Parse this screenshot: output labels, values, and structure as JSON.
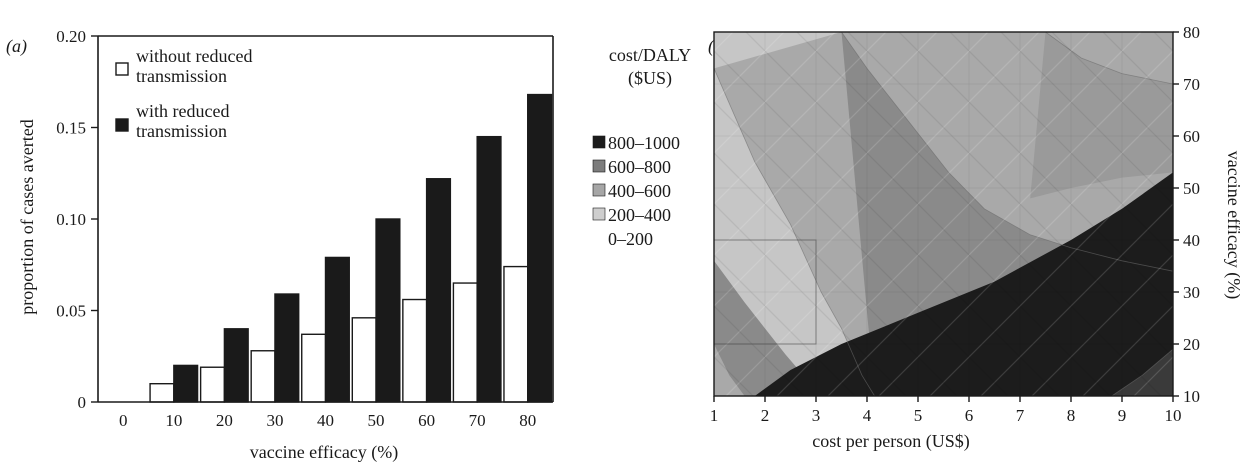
{
  "chart_data": [
    {
      "type": "bar",
      "panel_label": "(a)",
      "categories": [
        "0",
        "10",
        "20",
        "30",
        "40",
        "50",
        "60",
        "70",
        "80"
      ],
      "series": [
        {
          "name": "without reduced transmission",
          "values": [
            0,
            0.01,
            0.019,
            0.028,
            0.037,
            0.046,
            0.056,
            0.065,
            0.074
          ],
          "color": "#ffffff"
        },
        {
          "name": "with reduced transmission",
          "values": [
            0,
            0.02,
            0.04,
            0.059,
            0.079,
            0.1,
            0.122,
            0.145,
            0.168
          ],
          "color": "#1a1a1a"
        }
      ],
      "xlabel": "vaccine efficacy (%)",
      "ylabel": "proportion of cases averted",
      "ylim": [
        0,
        0.2
      ],
      "yticks": [
        "0",
        "0.05",
        "0.10",
        "0.15",
        "0.20"
      ],
      "legend": [
        "without reduced transmission",
        "with reduced transmission"
      ],
      "legend_position": "top-left",
      "grid": false
    },
    {
      "type": "heatmap",
      "panel_label": "(b)",
      "xlabel": "cost per person (US$)",
      "ylabel": "vaccine efficacy (%)",
      "xlim": [
        1,
        10
      ],
      "ylim": [
        10,
        80
      ],
      "xticks": [
        "1",
        "2",
        "3",
        "4",
        "5",
        "6",
        "7",
        "8",
        "9",
        "10"
      ],
      "yticks": [
        "10",
        "20",
        "30",
        "40",
        "50",
        "60",
        "70",
        "80"
      ],
      "legend_title": [
        "cost/DALY",
        "($US)"
      ],
      "legend_position": "left",
      "levels": [
        {
          "label": "800–1000",
          "color": "#1c1c1c"
        },
        {
          "label": "600–800",
          "color": "#7c7c7c"
        },
        {
          "label": "400–600",
          "color": "#a6a6a6"
        },
        {
          "label": "200–400",
          "color": "#cecece"
        },
        {
          "label": "0–200",
          "color": "#ffffff"
        }
      ],
      "region_colors": {
        "top_left": "#c6c6c6",
        "upper_band": "#a9a9a9",
        "middle_band": "#8a8a8a",
        "bottom_right": "#1c1c1c",
        "corner": "#3a3a3a"
      },
      "boundaries": {
        "b1": [
          [
            1.0,
            73
          ],
          [
            1.8,
            55
          ],
          [
            2.5,
            43
          ],
          [
            3.1,
            30
          ],
          [
            3.5,
            23
          ],
          [
            3.9,
            14
          ],
          [
            4.15,
            10
          ]
        ],
        "b2": [
          [
            3.5,
            80
          ],
          [
            4.0,
            73
          ],
          [
            4.8,
            63
          ],
          [
            5.6,
            53
          ],
          [
            6.3,
            46
          ],
          [
            7.2,
            41
          ],
          [
            8.0,
            38.5
          ],
          [
            9.0,
            36
          ],
          [
            10.0,
            34
          ]
        ],
        "b3": [
          [
            7.5,
            80
          ],
          [
            8.2,
            75
          ],
          [
            9.0,
            72
          ],
          [
            10.0,
            70
          ]
        ],
        "b4": [
          [
            1.8,
            10
          ],
          [
            2.5,
            15
          ],
          [
            3.5,
            20
          ],
          [
            5.0,
            26
          ],
          [
            6.5,
            32
          ],
          [
            8.0,
            40
          ],
          [
            9.0,
            46
          ],
          [
            10.0,
            53
          ]
        ],
        "b5": [
          [
            8.8,
            10
          ],
          [
            9.4,
            14
          ],
          [
            10.0,
            19
          ]
        ]
      }
    }
  ]
}
